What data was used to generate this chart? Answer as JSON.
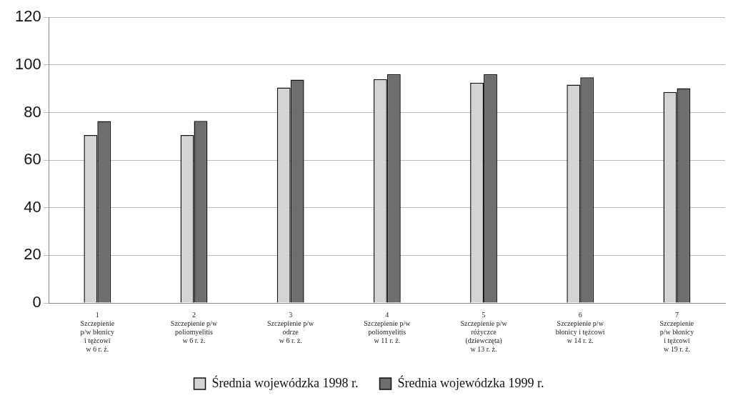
{
  "chart_data": {
    "type": "bar",
    "categories": [
      "1\nSzczepienie\np/w błonicy\ni tężcowi\nw 6 r. ż.",
      "2\nSzczepienie p/w\npoliomyelitis\nw 6 r. ż.",
      "3\nSzczepienie p/w\nodrze\nw 6 r. ż.",
      "4\nSzczepienie p/w\npoliomyelitis\nw 11 r. ż.",
      "5\nSzczepienie p/w\nróżyczce\n(dziewczęta)\nw 13 r. ż.",
      "6\nSzczepienie p/w\nbłonicy i tężcowi\nw 14 r. ż.",
      "7\nSzczepienie\np/w błonicy\ni tężcowi\nw 19 r. ż."
    ],
    "series": [
      {
        "name": "Średnia wojewódzka 1998 r.",
        "color": "#d4d4d4",
        "values": [
          70.5,
          70.5,
          90.5,
          94,
          92.5,
          91.7,
          88.6
        ]
      },
      {
        "name": "Średnia wojewódzka 1999 r.",
        "color": "#6e6e6e",
        "values": [
          76.4,
          76.5,
          93.8,
          96.1,
          96.1,
          94.8,
          90.2
        ]
      }
    ],
    "ylim": [
      0,
      120
    ],
    "yticks": [
      0,
      20,
      40,
      60,
      80,
      100,
      120
    ],
    "grid": "y",
    "legend": "bottom"
  }
}
